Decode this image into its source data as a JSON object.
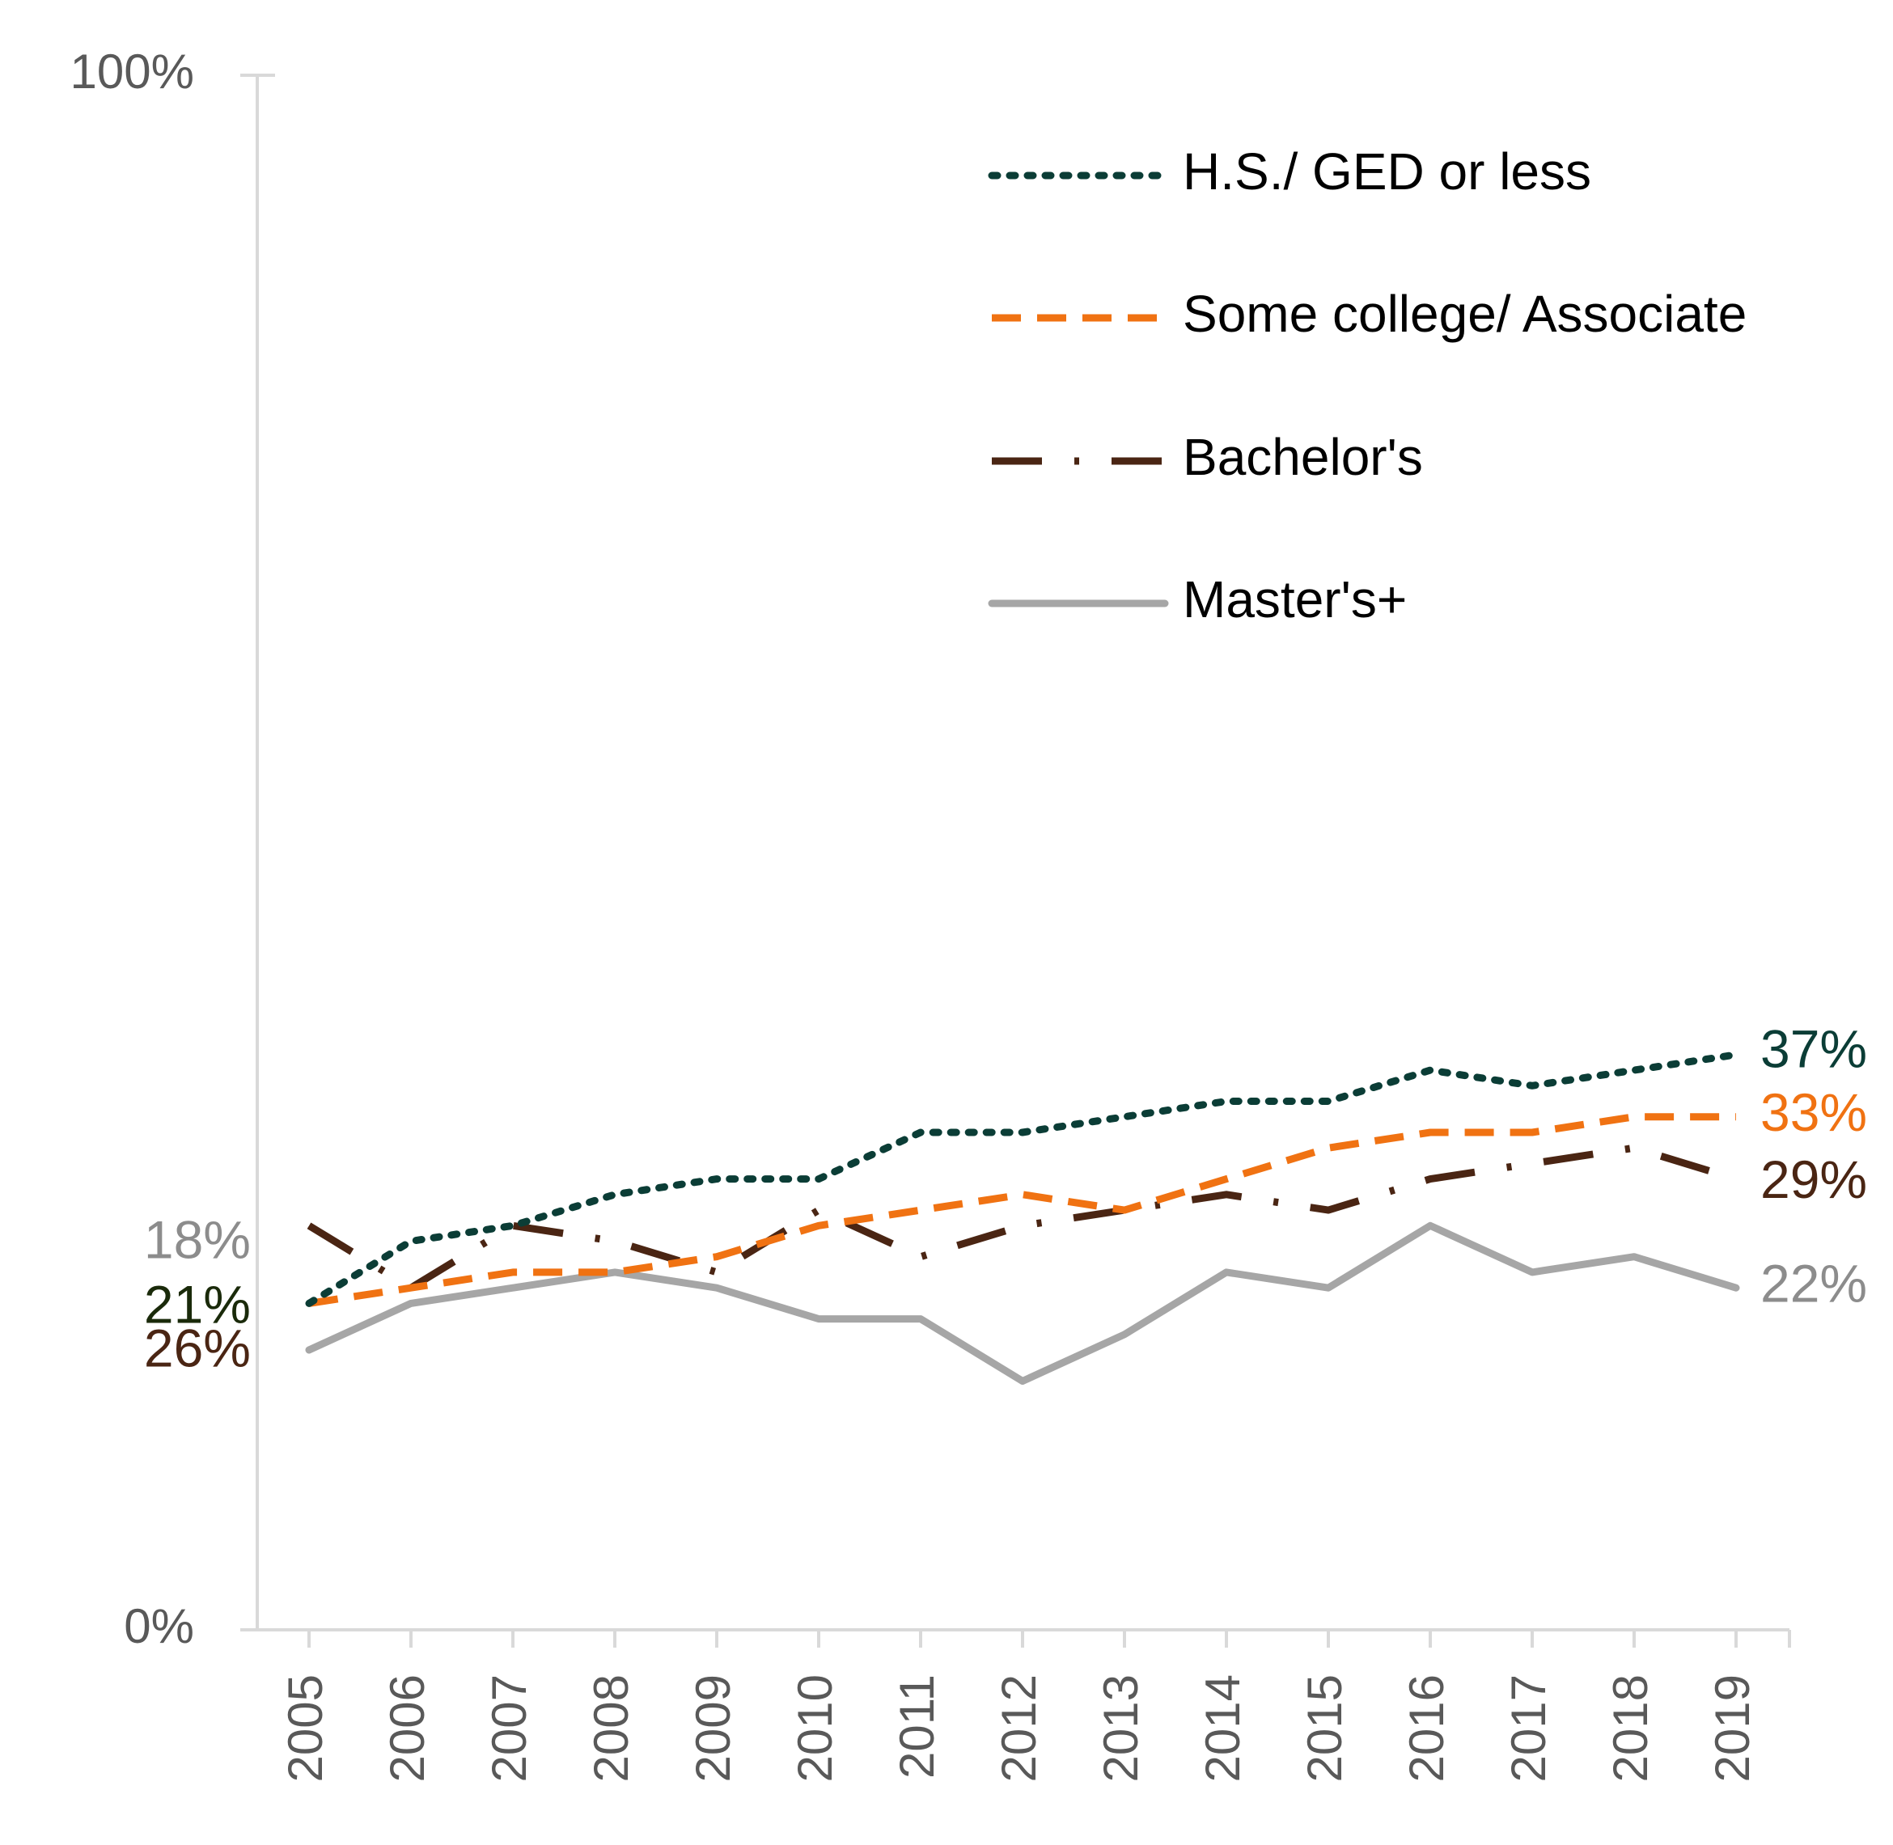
{
  "chart_data": {
    "type": "line",
    "title": "",
    "xlabel": "",
    "ylabel": "",
    "ylim": [
      0,
      100
    ],
    "y_ticks": [
      "0%",
      "100%"
    ],
    "categories": [
      "2005",
      "2006",
      "2007",
      "2008",
      "2009",
      "2010",
      "2011",
      "2012",
      "2013",
      "2014",
      "2015",
      "2016",
      "2017",
      "2018",
      "2019"
    ],
    "legend_position": "top-right",
    "grid": false,
    "series": [
      {
        "name": "H.S./ GED or less",
        "color": "#0b3d36",
        "style": "dotted",
        "values": [
          21,
          25,
          26,
          28,
          29,
          29,
          32,
          32,
          33,
          34,
          34,
          36,
          35,
          36,
          37
        ],
        "start_label": "21%",
        "end_label": "37%"
      },
      {
        "name": "Some college/ Associate",
        "color": "#f07212",
        "style": "dashed",
        "values": [
          21,
          22,
          23,
          23,
          24,
          26,
          27,
          28,
          27,
          29,
          31,
          32,
          32,
          33,
          33
        ],
        "start_label": "",
        "end_label": "33%"
      },
      {
        "name": "Bachelor's",
        "color": "#4a2513",
        "style": "dash-dot",
        "values": [
          26,
          22,
          26,
          25,
          23,
          27,
          24,
          26,
          27,
          28,
          27,
          29,
          30,
          31,
          29
        ],
        "start_label": "26%",
        "end_label": "29%"
      },
      {
        "name": "Master's+",
        "color": "#a6a6a6",
        "style": "solid",
        "values": [
          18,
          21,
          22,
          23,
          22,
          20,
          20,
          16,
          19,
          23,
          22,
          26,
          23,
          24,
          22
        ],
        "start_label": "18%",
        "end_label": "22%"
      }
    ]
  }
}
